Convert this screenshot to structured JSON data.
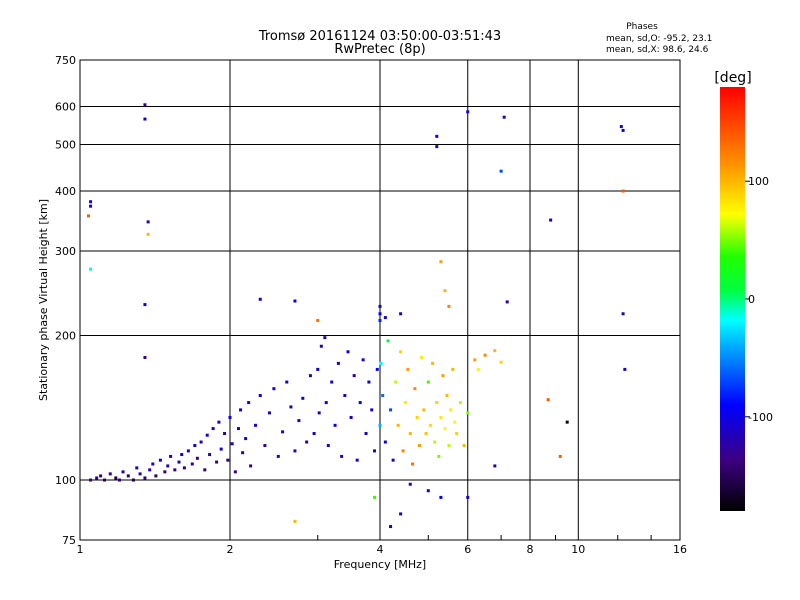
{
  "chart_data": {
    "type": "scatter",
    "title": "Tromsø 20161124 03:50:00-03:51:43",
    "subtitle": "RwPretec (8p)",
    "xlabel": "Frequency [MHz]",
    "ylabel": "Stationary phase Virtual Height [km]",
    "xscale": "log",
    "yscale": "log",
    "xlim": [
      1,
      16
    ],
    "ylim": [
      75,
      750
    ],
    "x_ticks": [
      1,
      2,
      4,
      6,
      8,
      10,
      16
    ],
    "x_tick_labels": [
      "1",
      "2",
      "4",
      "6",
      "8",
      "10",
      "16"
    ],
    "y_ticks": [
      75,
      100,
      200,
      300,
      400,
      500,
      600,
      750
    ],
    "y_tick_labels": [
      "75",
      "100",
      "200",
      "300",
      "400",
      "500",
      "600",
      "750"
    ],
    "grid": true,
    "legend": {
      "title": "Phases",
      "lines": [
        "mean, sd,O: -95.2, 23.1",
        "mean, sd,X:  98.6, 24.6"
      ],
      "position": "top-right"
    },
    "colorbar": {
      "label": "[deg]",
      "ticks": [
        100,
        0,
        -100
      ],
      "range": [
        -180,
        180
      ],
      "colormap": "rainbow"
    },
    "series": [
      {
        "color_value_deg": "phase",
        "points": [
          [
            1.05,
            100,
            -130
          ],
          [
            1.08,
            101,
            -120
          ],
          [
            1.1,
            102,
            -140
          ],
          [
            1.12,
            100,
            -150
          ],
          [
            1.15,
            103,
            -130
          ],
          [
            1.18,
            101,
            -160
          ],
          [
            1.2,
            100,
            -140
          ],
          [
            1.22,
            104,
            -120
          ],
          [
            1.25,
            102,
            -150
          ],
          [
            1.28,
            100,
            -160
          ],
          [
            1.3,
            106,
            -110
          ],
          [
            1.32,
            103,
            -130
          ],
          [
            1.35,
            101,
            -140
          ],
          [
            1.38,
            105,
            -120
          ],
          [
            1.4,
            108,
            -110
          ],
          [
            1.42,
            102,
            -150
          ],
          [
            1.45,
            110,
            -100
          ],
          [
            1.48,
            104,
            -140
          ],
          [
            1.5,
            107,
            -120
          ],
          [
            1.52,
            112,
            -110
          ],
          [
            1.55,
            105,
            -130
          ],
          [
            1.58,
            109,
            -120
          ],
          [
            1.6,
            113,
            -100
          ],
          [
            1.62,
            106,
            -140
          ],
          [
            1.65,
            115,
            -110
          ],
          [
            1.68,
            108,
            -120
          ],
          [
            1.7,
            118,
            -100
          ],
          [
            1.72,
            111,
            -130
          ],
          [
            1.75,
            120,
            -110
          ],
          [
            1.78,
            105,
            -140
          ],
          [
            1.8,
            124,
            -100
          ],
          [
            1.82,
            113,
            -120
          ],
          [
            1.85,
            128,
            -110
          ],
          [
            1.88,
            109,
            -130
          ],
          [
            1.9,
            132,
            -100
          ],
          [
            1.92,
            116,
            -110
          ],
          [
            1.95,
            125,
            -120
          ],
          [
            1.98,
            110,
            -140
          ],
          [
            2.0,
            135,
            -100
          ],
          [
            2.02,
            119,
            -110
          ],
          [
            2.05,
            104,
            -130
          ],
          [
            2.08,
            128,
            -110
          ],
          [
            2.1,
            140,
            -100
          ],
          [
            2.12,
            114,
            -120
          ],
          [
            2.15,
            122,
            -110
          ],
          [
            2.18,
            145,
            -100
          ],
          [
            2.2,
            107,
            -130
          ],
          [
            2.25,
            130,
            -110
          ],
          [
            2.3,
            150,
            -100
          ],
          [
            2.35,
            118,
            -120
          ],
          [
            2.4,
            138,
            -110
          ],
          [
            2.45,
            155,
            -100
          ],
          [
            2.5,
            112,
            -130
          ],
          [
            2.55,
            126,
            -110
          ],
          [
            2.6,
            160,
            -100
          ],
          [
            2.65,
            142,
            -110
          ],
          [
            2.7,
            115,
            -120
          ],
          [
            2.75,
            133,
            -110
          ],
          [
            2.8,
            148,
            -100
          ],
          [
            2.85,
            120,
            -120
          ],
          [
            2.9,
            165,
            -110
          ],
          [
            2.95,
            125,
            -110
          ],
          [
            3.0,
            170,
            -100
          ],
          [
            3.02,
            138,
            -110
          ],
          [
            3.05,
            190,
            -110
          ],
          [
            3.1,
            198,
            -120
          ],
          [
            3.12,
            145,
            -100
          ],
          [
            3.15,
            118,
            -110
          ],
          [
            3.2,
            160,
            -110
          ],
          [
            3.25,
            130,
            -100
          ],
          [
            3.3,
            175,
            -110
          ],
          [
            3.35,
            112,
            -120
          ],
          [
            3.4,
            150,
            -110
          ],
          [
            3.45,
            185,
            -100
          ],
          [
            3.5,
            135,
            -110
          ],
          [
            3.55,
            165,
            -120
          ],
          [
            3.6,
            110,
            -110
          ],
          [
            3.65,
            145,
            -100
          ],
          [
            3.7,
            178,
            -110
          ],
          [
            3.75,
            125,
            -110
          ],
          [
            3.8,
            160,
            -100
          ],
          [
            3.85,
            140,
            -110
          ],
          [
            3.9,
            115,
            -120
          ],
          [
            3.95,
            170,
            -90
          ],
          [
            4.0,
            130,
            -40
          ],
          [
            4.02,
            175,
            -20
          ],
          [
            4.05,
            150,
            -60
          ],
          [
            4.1,
            120,
            -100
          ],
          [
            4.15,
            195,
            10
          ],
          [
            4.2,
            140,
            -70
          ],
          [
            4.25,
            110,
            -110
          ],
          [
            4.3,
            160,
            60
          ],
          [
            4.35,
            130,
            100
          ],
          [
            4.4,
            185,
            90
          ],
          [
            4.45,
            115,
            120
          ],
          [
            4.5,
            145,
            80
          ],
          [
            4.55,
            170,
            110
          ],
          [
            4.6,
            125,
            100
          ],
          [
            4.65,
            108,
            130
          ],
          [
            4.7,
            155,
            120
          ],
          [
            4.75,
            135,
            90
          ],
          [
            4.8,
            118,
            110
          ],
          [
            4.85,
            180,
            80
          ],
          [
            4.9,
            140,
            100
          ],
          [
            4.95,
            125,
            95
          ],
          [
            5.0,
            160,
            40
          ],
          [
            5.05,
            130,
            85
          ],
          [
            5.1,
            175,
            100
          ],
          [
            5.15,
            120,
            60
          ],
          [
            5.2,
            145,
            90
          ],
          [
            5.25,
            112,
            50
          ],
          [
            5.3,
            135,
            80
          ],
          [
            5.35,
            165,
            110
          ],
          [
            5.4,
            128,
            70
          ],
          [
            5.45,
            150,
            100
          ],
          [
            5.5,
            118,
            60
          ],
          [
            5.55,
            140,
            80
          ],
          [
            5.6,
            170,
            100
          ],
          [
            5.65,
            132,
            70
          ],
          [
            5.7,
            125,
            90
          ],
          [
            5.8,
            145,
            60
          ],
          [
            5.9,
            118,
            100
          ],
          [
            6.0,
            138,
            50
          ],
          [
            6.2,
            178,
            110
          ],
          [
            6.5,
            182,
            120
          ],
          [
            6.8,
            186,
            100
          ],
          [
            7.0,
            176,
            90
          ],
          [
            6.3,
            170,
            70
          ],
          [
            1.05,
            380,
            -100
          ],
          [
            1.05,
            372,
            -100
          ],
          [
            1.04,
            355,
            140
          ],
          [
            1.05,
            275,
            -20
          ],
          [
            1.35,
            605,
            -130
          ],
          [
            1.35,
            565,
            -100
          ],
          [
            1.37,
            345,
            -120
          ],
          [
            1.37,
            325,
            100
          ],
          [
            1.35,
            232,
            -100
          ],
          [
            1.35,
            180,
            -130
          ],
          [
            2.3,
            238,
            -100
          ],
          [
            2.7,
            236,
            -100
          ],
          [
            2.7,
            82,
            100
          ],
          [
            3.0,
            215,
            130
          ],
          [
            4.0,
            230,
            -100
          ],
          [
            4.0,
            222,
            -90
          ],
          [
            4.0,
            215,
            -80
          ],
          [
            4.1,
            218,
            -100
          ],
          [
            4.4,
            222,
            -110
          ],
          [
            5.2,
            520,
            -100
          ],
          [
            5.2,
            495,
            -120
          ],
          [
            5.3,
            285,
            110
          ],
          [
            5.4,
            248,
            100
          ],
          [
            5.5,
            230,
            120
          ],
          [
            6.0,
            585,
            -110
          ],
          [
            7.0,
            440,
            -70
          ],
          [
            7.1,
            570,
            -120
          ],
          [
            7.2,
            235,
            -120
          ],
          [
            8.8,
            348,
            -100
          ],
          [
            8.7,
            147,
            140
          ],
          [
            9.5,
            132,
            -170
          ],
          [
            9.2,
            112,
            140
          ],
          [
            12.2,
            545,
            -110
          ],
          [
            12.3,
            535,
            -100
          ],
          [
            12.3,
            400,
            140
          ],
          [
            12.3,
            222,
            -120
          ],
          [
            12.4,
            170,
            -110
          ],
          [
            4.2,
            80,
            -110
          ],
          [
            4.4,
            85,
            -100
          ],
          [
            4.6,
            98,
            -110
          ],
          [
            5.0,
            95,
            -100
          ],
          [
            5.3,
            92,
            -90
          ],
          [
            3.9,
            92,
            40
          ],
          [
            6.0,
            92,
            -110
          ],
          [
            6.8,
            107,
            -120
          ]
        ]
      }
    ]
  }
}
